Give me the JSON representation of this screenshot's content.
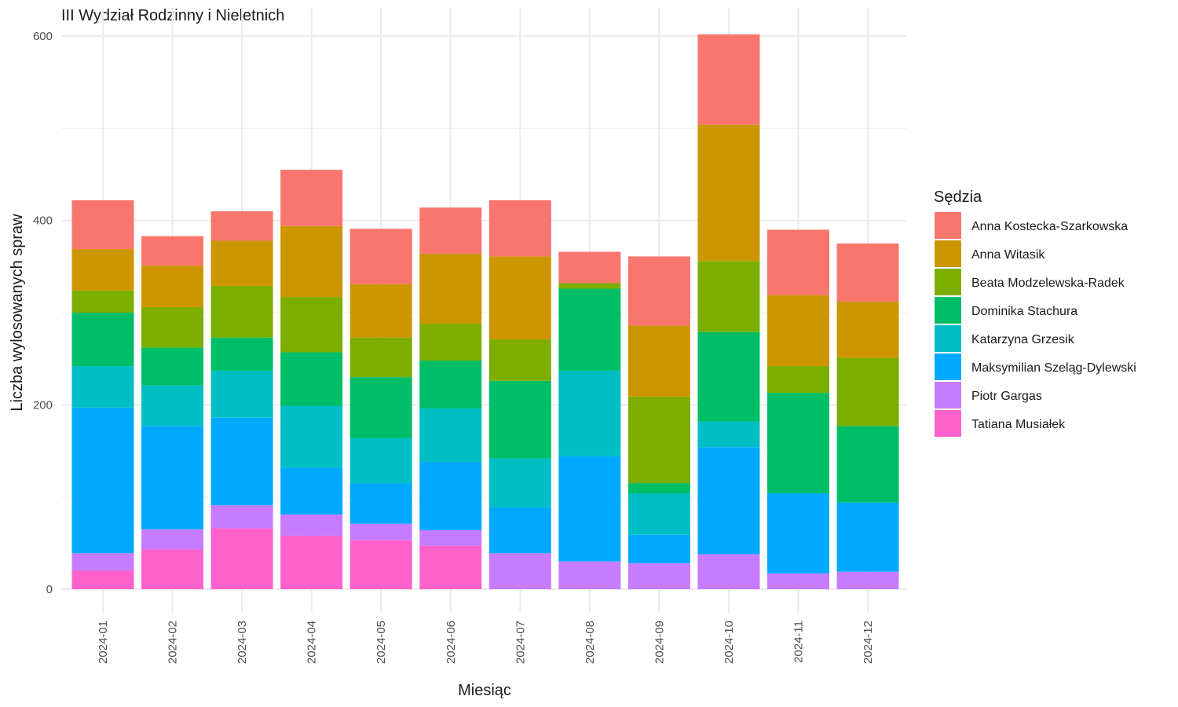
{
  "chart_data": {
    "type": "bar",
    "stacked": true,
    "title": "III Wydział Rodzinny i Nieletnich",
    "xlabel": "Miesiąc",
    "ylabel": "Liczba wylosowanych spraw",
    "ylim": [
      0,
      600
    ],
    "yticks": [
      0,
      200,
      400,
      600
    ],
    "grid": true,
    "legend": {
      "title": "Sędzia",
      "position": "right"
    },
    "categories": [
      "2024-01",
      "2024-02",
      "2024-03",
      "2024-04",
      "2024-05",
      "2024-06",
      "2024-07",
      "2024-08",
      "2024-09",
      "2024-10",
      "2024-11",
      "2024-12"
    ],
    "series": [
      {
        "name": "Tatiana Musiałek",
        "color": "#FF61CC",
        "values": [
          20,
          43,
          66,
          58,
          53,
          47,
          0,
          0,
          0,
          0,
          0,
          0
        ]
      },
      {
        "name": "Piotr Gargas",
        "color": "#C77CFF",
        "values": [
          19,
          22,
          25,
          23,
          18,
          17,
          39,
          30,
          28,
          38,
          17,
          19
        ]
      },
      {
        "name": "Maksymilian Szeląg-Dylewski",
        "color": "#00A9FF",
        "values": [
          158,
          112,
          95,
          51,
          44,
          74,
          50,
          114,
          31,
          116,
          87,
          75
        ]
      },
      {
        "name": "Katarzyna Grzesik",
        "color": "#00BFC4",
        "values": [
          45,
          44,
          51,
          67,
          49,
          58,
          53,
          93,
          45,
          28,
          0,
          0
        ]
      },
      {
        "name": "Dominika Stachura",
        "color": "#00BE67",
        "values": [
          58,
          41,
          36,
          58,
          66,
          52,
          84,
          89,
          11,
          97,
          109,
          83
        ]
      },
      {
        "name": "Beata Modzelewska-Radek",
        "color": "#7CAE00",
        "values": [
          24,
          44,
          56,
          60,
          43,
          40,
          45,
          6,
          94,
          77,
          29,
          74
        ]
      },
      {
        "name": "Anna Witasik",
        "color": "#CD9600",
        "values": [
          45,
          45,
          49,
          77,
          58,
          76,
          90,
          0,
          77,
          148,
          77,
          61
        ]
      },
      {
        "name": "Anna Kostecka-Szarkowska",
        "color": "#F8766D",
        "values": [
          53,
          32,
          32,
          61,
          60,
          50,
          61,
          34,
          75,
          98,
          71,
          63
        ]
      }
    ]
  }
}
